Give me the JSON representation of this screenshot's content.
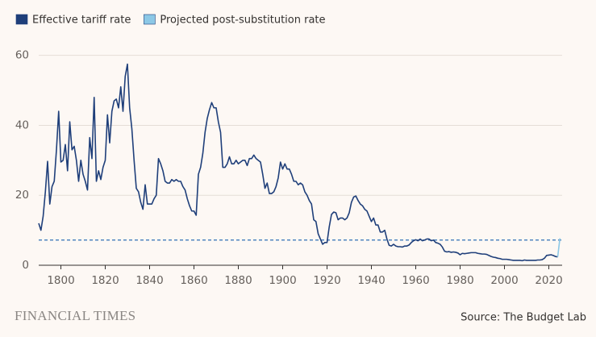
{
  "chart_data": {
    "type": "line",
    "legend": "top-left",
    "grid": true,
    "xlim": [
      1790,
      2026
    ],
    "xticks": [
      1800,
      1820,
      1840,
      1860,
      1880,
      1900,
      1920,
      1940,
      1960,
      1980,
      2000,
      2020
    ],
    "ylim": [
      0,
      62
    ],
    "yticks": [
      0,
      20,
      40,
      60
    ],
    "reference_line": {
      "value": 7.2,
      "style": "dashed",
      "color": "#2f6fb5"
    },
    "series": [
      {
        "name": "Effective tariff rate",
        "color": "#1f3f7a",
        "x": [
          1790,
          1791,
          1792,
          1793,
          1794,
          1795,
          1796,
          1797,
          1798,
          1799,
          1800,
          1801,
          1802,
          1803,
          1804,
          1805,
          1806,
          1807,
          1808,
          1809,
          1810,
          1811,
          1812,
          1813,
          1814,
          1815,
          1816,
          1817,
          1818,
          1819,
          1820,
          1821,
          1822,
          1823,
          1824,
          1825,
          1826,
          1827,
          1828,
          1829,
          1830,
          1831,
          1832,
          1833,
          1834,
          1835,
          1836,
          1837,
          1838,
          1839,
          1840,
          1841,
          1842,
          1843,
          1844,
          1845,
          1846,
          1847,
          1848,
          1849,
          1850,
          1851,
          1852,
          1853,
          1854,
          1855,
          1856,
          1857,
          1858,
          1859,
          1860,
          1861,
          1862,
          1863,
          1864,
          1865,
          1866,
          1867,
          1868,
          1869,
          1870,
          1871,
          1872,
          1873,
          1874,
          1875,
          1876,
          1877,
          1878,
          1879,
          1880,
          1881,
          1882,
          1883,
          1884,
          1885,
          1886,
          1887,
          1888,
          1889,
          1890,
          1891,
          1892,
          1893,
          1894,
          1895,
          1896,
          1897,
          1898,
          1899,
          1900,
          1901,
          1902,
          1903,
          1904,
          1905,
          1906,
          1907,
          1908,
          1909,
          1910,
          1911,
          1912,
          1913,
          1914,
          1915,
          1916,
          1917,
          1918,
          1919,
          1920,
          1921,
          1922,
          1923,
          1924,
          1925,
          1926,
          1927,
          1928,
          1929,
          1930,
          1931,
          1932,
          1933,
          1934,
          1935,
          1936,
          1937,
          1938,
          1939,
          1940,
          1941,
          1942,
          1943,
          1944,
          1945,
          1946,
          1947,
          1948,
          1949,
          1950,
          1951,
          1952,
          1953,
          1954,
          1955,
          1956,
          1957,
          1958,
          1959,
          1960,
          1961,
          1962,
          1963,
          1964,
          1965,
          1966,
          1967,
          1968,
          1969,
          1970,
          1971,
          1972,
          1973,
          1974,
          1975,
          1976,
          1977,
          1978,
          1979,
          1980,
          1981,
          1982,
          1983,
          1984,
          1985,
          1986,
          1987,
          1988,
          1989,
          1990,
          1991,
          1992,
          1993,
          1994,
          1995,
          1996,
          1997,
          1998,
          1999,
          2000,
          2001,
          2002,
          2003,
          2004,
          2005,
          2006,
          2007,
          2008,
          2009,
          2010,
          2011,
          2012,
          2013,
          2014,
          2015,
          2016,
          2017,
          2018,
          2019,
          2020,
          2021,
          2022,
          2023,
          2024
        ],
        "values": [
          12,
          10,
          14,
          21,
          29.7,
          17.5,
          22.5,
          24,
          33,
          44,
          29.5,
          30,
          34.5,
          27,
          41,
          33,
          34,
          30,
          24,
          30,
          26,
          24,
          21.5,
          36.5,
          30.5,
          48,
          24,
          27,
          24.5,
          28,
          30,
          43,
          35,
          44,
          47,
          47.5,
          45,
          51,
          44,
          54,
          57.5,
          45,
          39,
          30,
          22,
          21,
          18,
          16,
          23,
          17.5,
          17.5,
          17.5,
          19,
          20,
          30.5,
          29,
          27,
          24,
          23.5,
          23.5,
          24.5,
          24,
          24.5,
          24,
          24,
          22.5,
          21.5,
          19,
          17,
          15.5,
          15.5,
          14.3,
          26,
          28,
          32,
          38,
          42,
          44.5,
          46.5,
          45,
          45,
          41,
          38,
          28,
          28,
          29,
          31,
          29,
          29,
          30,
          29,
          29.5,
          30,
          30,
          28.5,
          30.5,
          30.5,
          31.5,
          30.5,
          30,
          29.5,
          26,
          22,
          23.5,
          20.5,
          20.5,
          21,
          22.5,
          25,
          29.5,
          27.5,
          29,
          27.5,
          27.5,
          26,
          24,
          24,
          23,
          23.5,
          23,
          21,
          20,
          18.5,
          17.5,
          13,
          12.5,
          9,
          7.5,
          6,
          6.5,
          6.5,
          11,
          14.5,
          15.2,
          15,
          13,
          13.5,
          13.5,
          13,
          13.5,
          15,
          18,
          19.5,
          19.8,
          18.5,
          17.5,
          17,
          16,
          15.5,
          14,
          12.5,
          13.5,
          11.5,
          11.5,
          9.5,
          9.5,
          10,
          7.5,
          5.7,
          5.5,
          6,
          5.5,
          5.3,
          5.3,
          5.2,
          5.5,
          5.5,
          5.8,
          6.5,
          7,
          7.3,
          7,
          7.5,
          7,
          7.2,
          7.5,
          7.5,
          7,
          7.2,
          6.5,
          6.3,
          6,
          5.2,
          4,
          3.8,
          3.9,
          3.7,
          3.8,
          3.7,
          3.5,
          3,
          3.4,
          3.3,
          3.4,
          3.5,
          3.6,
          3.6,
          3.6,
          3.4,
          3.3,
          3.2,
          3.2,
          3.1,
          2.8,
          2.5,
          2.3,
          2.2,
          2,
          1.9,
          1.7,
          1.7,
          1.7,
          1.6,
          1.5,
          1.4,
          1.4,
          1.4,
          1.4,
          1.3,
          1.5,
          1.4,
          1.4,
          1.4,
          1.4,
          1.4,
          1.5,
          1.5,
          1.6,
          2,
          2.8,
          2.9,
          3,
          2.8,
          2.5,
          2.4
        ]
      },
      {
        "name": "Projected post-substitution rate",
        "color": "#8cc8e6",
        "x": [
          2024,
          2025
        ],
        "values": [
          2.4,
          7.7
        ]
      }
    ]
  },
  "footer": {
    "brand": "FINANCIAL TIMES",
    "source": "Source: The Budget Lab"
  }
}
